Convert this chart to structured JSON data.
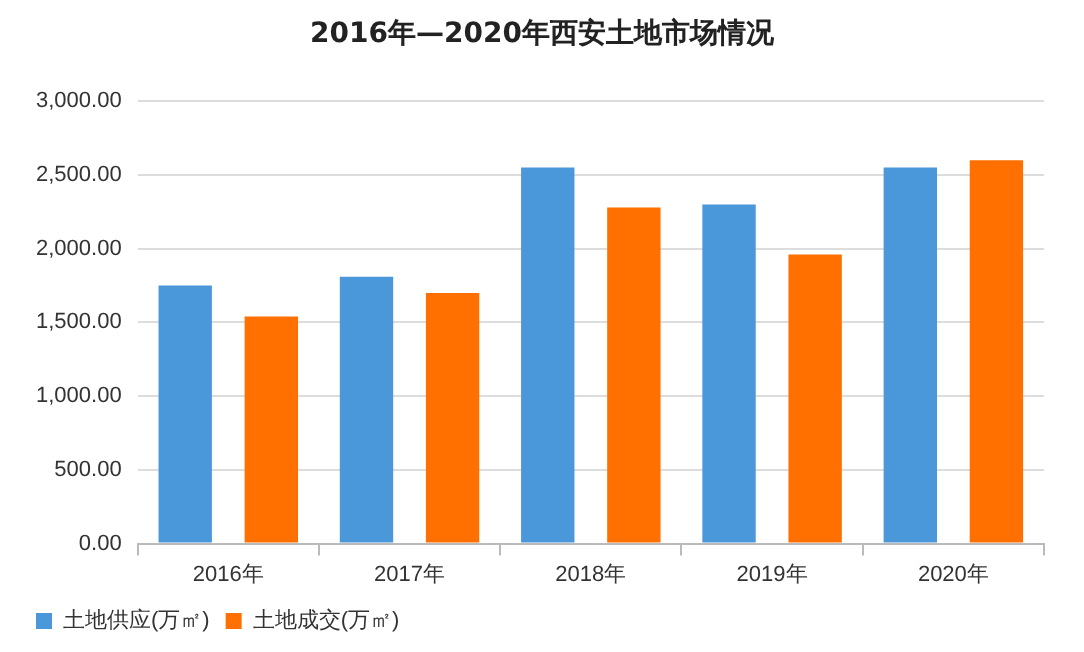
{
  "chart_data": {
    "type": "bar",
    "title": "2016年—2020年西安土地市场情况",
    "categories": [
      "2016年",
      "2017年",
      "2018年",
      "2019年",
      "2020年"
    ],
    "series": [
      {
        "name": "土地供应(万㎡)",
        "color": "#4a98da",
        "values": [
          1750,
          1810,
          2550,
          2300,
          2550
        ]
      },
      {
        "name": "土地成交(万㎡)",
        "color": "#ff7000",
        "values": [
          1540,
          1700,
          2280,
          1960,
          2600
        ]
      }
    ],
    "ylim": [
      0,
      3000
    ],
    "yticks": [
      {
        "value": 0,
        "label": "0.00"
      },
      {
        "value": 500,
        "label": "500.00"
      },
      {
        "value": 1000,
        "label": "1,000.00"
      },
      {
        "value": 1500,
        "label": "1,500.00"
      },
      {
        "value": 2000,
        "label": "2,000.00"
      },
      {
        "value": 2500,
        "label": "2,500.00"
      },
      {
        "value": 3000,
        "label": "3,000.00"
      }
    ],
    "grid": "y",
    "legend": "bottom left"
  }
}
